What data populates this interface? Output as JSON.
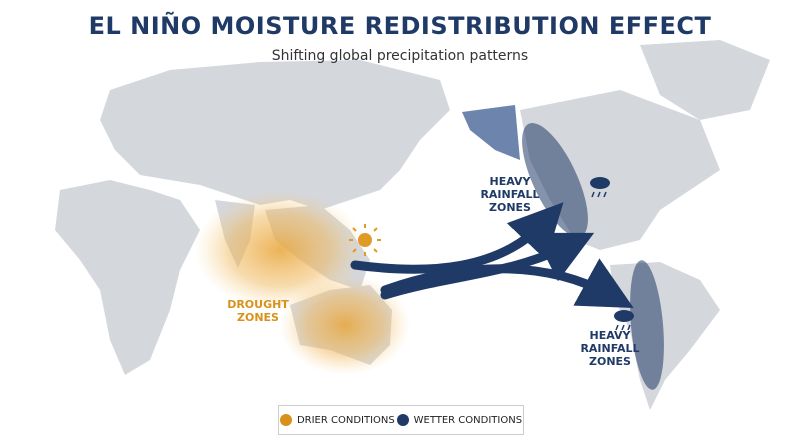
{
  "header": {
    "title": "EL NIÑO MOISTURE REDISTRIBUTION EFFECT",
    "subtitle": "Shifting global precipitation patterns"
  },
  "annotations": [
    {
      "lines": [
        "HEAVY",
        "RAINFALL",
        "ZONES"
      ]
    },
    {
      "lines": [
        "DROUGHT",
        "ZONES"
      ]
    },
    {
      "lines": [
        "HEAVY",
        "RAINFALL",
        "ZONES"
      ]
    }
  ],
  "legend": [
    "DRIER CONDITIONS",
    "WETTER CONDITIONS"
  ]
}
